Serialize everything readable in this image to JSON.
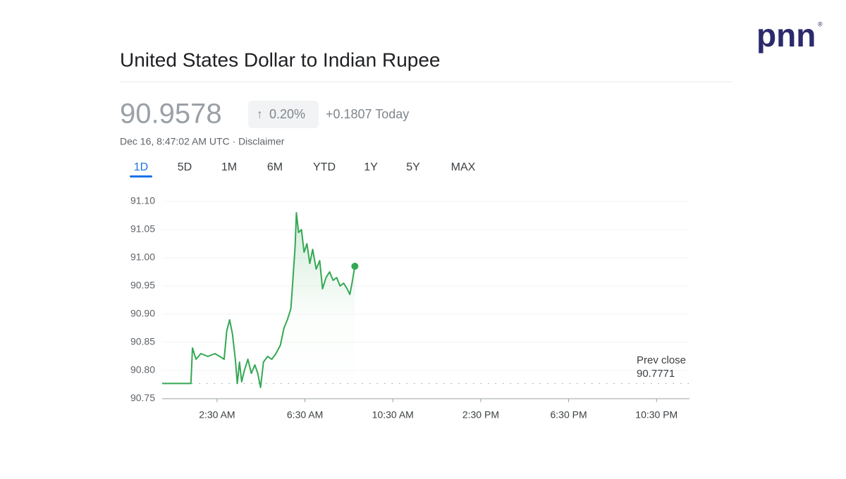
{
  "logo": {
    "text": "pnn",
    "mark": "®"
  },
  "header": {
    "title": "United States Dollar to Indian Rupee",
    "price": "90.9578",
    "change_pct": "0.20%",
    "change_abs": "+0.1807 Today",
    "timestamp": "Dec 16, 8:47:02 AM UTC · Disclaimer"
  },
  "tabs": {
    "items": [
      "1D",
      "5D",
      "1M",
      "6M",
      "YTD",
      "1Y",
      "5Y",
      "MAX"
    ],
    "active": 0
  },
  "chart_data": {
    "type": "line",
    "color": "#34a853",
    "grid": true,
    "x": [
      0,
      1.31,
      1.38,
      1.54,
      1.76,
      2.08,
      2.4,
      2.62,
      2.82,
      2.94,
      3.07,
      3.2,
      3.33,
      3.42,
      3.52,
      3.62,
      3.74,
      3.9,
      4.06,
      4.22,
      4.35,
      4.48,
      4.61,
      4.8,
      4.99,
      5.18,
      5.38,
      5.54,
      5.7,
      5.86,
      5.95,
      6.05,
      6.11,
      6.21,
      6.34,
      6.46,
      6.59,
      6.72,
      6.85,
      7.01,
      7.17,
      7.3,
      7.46,
      7.62,
      7.78,
      7.94,
      8.1,
      8.26,
      8.42,
      8.54,
      8.64,
      8.77
    ],
    "values": [
      90.777,
      90.777,
      90.84,
      90.82,
      90.83,
      90.825,
      90.83,
      90.825,
      90.82,
      90.87,
      90.89,
      90.865,
      90.82,
      90.777,
      90.815,
      90.78,
      90.8,
      90.82,
      90.795,
      90.81,
      90.795,
      90.77,
      90.815,
      90.825,
      90.82,
      90.83,
      90.845,
      90.875,
      90.89,
      90.91,
      90.96,
      91.02,
      91.08,
      91.045,
      91.05,
      91.01,
      91.025,
      90.99,
      91.015,
      90.98,
      90.995,
      90.945,
      90.965,
      90.975,
      90.96,
      90.965,
      90.95,
      90.955,
      90.945,
      90.935,
      90.955,
      90.985
    ],
    "xlim": [
      0,
      24
    ],
    "xticks": [
      {
        "value": 2.5,
        "label": "2:30 AM"
      },
      {
        "value": 6.5,
        "label": "6:30 AM"
      },
      {
        "value": 10.5,
        "label": "10:30 AM"
      },
      {
        "value": 14.5,
        "label": "2:30 PM"
      },
      {
        "value": 18.5,
        "label": "6:30 PM"
      },
      {
        "value": 22.5,
        "label": "10:30 PM"
      }
    ],
    "ylim": [
      90.75,
      91.1
    ],
    "yticks": [
      90.75,
      {
        "value": 90.8,
        "label": "90.80"
      },
      90.85,
      {
        "value": 90.9,
        "label": "90.90"
      },
      90.95,
      {
        "value": 91.0,
        "label": "91.00"
      },
      91.05,
      {
        "value": 91.1,
        "label": "91.10"
      }
    ],
    "prev_close_label": "Prev close",
    "prev_close": 90.7771
  }
}
